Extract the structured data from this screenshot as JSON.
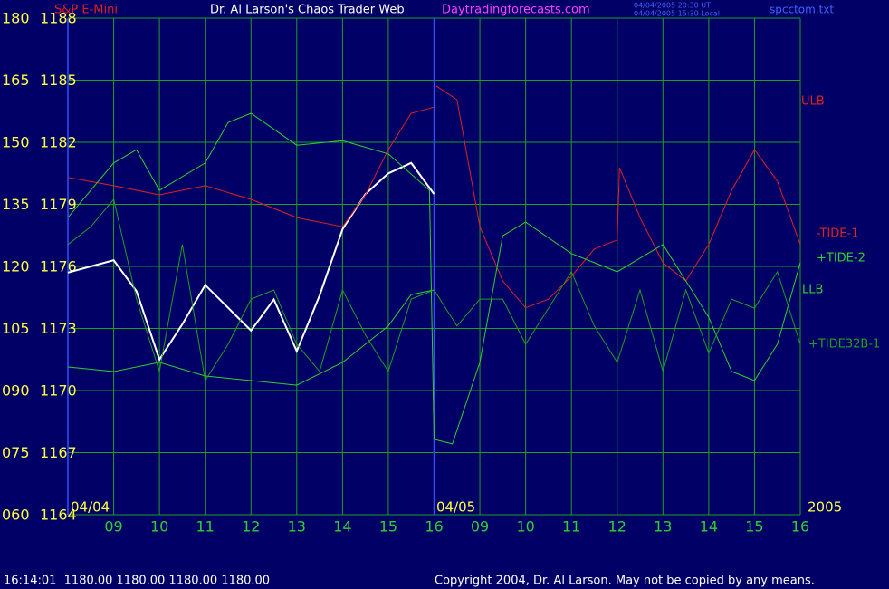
{
  "chart_data": {
    "type": "line",
    "title": "Dr. Al Larson's Chaos Trader Web",
    "instrument": "S&P E-Mini",
    "website": "Daytradingforecasts.com",
    "timestamp_ut": "04/04/2005 20:30 UT",
    "timestamp_local": "04/04/2005 15:30 Local",
    "file": "spcctom.txt",
    "date_labels": [
      "04/04",
      "04/05",
      "2005"
    ],
    "status": "16:14:01  1180.00 1180.00 1180.00 1180.00",
    "copyright": "Copyright 2004, Dr. Al Larson. May not be copied by any means.",
    "background": "#000066",
    "grid": true,
    "xlim": [
      0,
      16
    ],
    "xticks": [
      {
        "value": 1,
        "label": "09"
      },
      {
        "value": 2,
        "label": "10"
      },
      {
        "value": 3,
        "label": "11"
      },
      {
        "value": 4,
        "label": "12"
      },
      {
        "value": 5,
        "label": "13"
      },
      {
        "value": 6,
        "label": "14"
      },
      {
        "value": 7,
        "label": "15"
      },
      {
        "value": 8,
        "label": "16"
      },
      {
        "value": 9,
        "label": "09"
      },
      {
        "value": 10,
        "label": "10"
      },
      {
        "value": 11,
        "label": "11"
      },
      {
        "value": 12,
        "label": "12"
      },
      {
        "value": 13,
        "label": "13"
      },
      {
        "value": 14,
        "label": "14"
      },
      {
        "value": 15,
        "label": "15"
      },
      {
        "value": 16,
        "label": "16"
      }
    ],
    "ylim": [
      1164,
      1188
    ],
    "yticks": [
      1188,
      1185,
      1182,
      1179,
      1176,
      1173,
      1170,
      1167,
      1164
    ],
    "y2lim": [
      60,
      180
    ],
    "y2ticks": [
      180,
      165,
      150,
      135,
      120,
      105,
      {
        "value": 90,
        "label": "090"
      },
      {
        "value": 75,
        "label": "075"
      },
      {
        "value": 60,
        "label": "060"
      }
    ],
    "series": [
      {
        "color": "#ffffff",
        "x": [
          0,
          0.5,
          1,
          1.5,
          2,
          2.5,
          3,
          3.5,
          4,
          4.5,
          5,
          5.5,
          6,
          6.5,
          7,
          7.5,
          8
        ],
        "values": [
          1175.7,
          1176.0,
          1176.3,
          1174.8,
          1171.5,
          1173.2,
          1175.1,
          1174.0,
          1172.9,
          1174.4,
          1171.9,
          1174.6,
          1177.8,
          1179.5,
          1180.5,
          1181.0,
          1179.5
        ]
      },
      {
        "name": "ULB",
        "color": "#e02020",
        "axis": "y2",
        "x": [
          0,
          1,
          2,
          3,
          4,
          5,
          6,
          6.5,
          7,
          7.5,
          8
        ],
        "values": [
          141.5,
          139.5,
          137.3,
          139.5,
          136.2,
          131.8,
          129.6,
          137.3,
          148.2,
          157.0,
          158.5
        ]
      },
      {
        "name": "-TIDE-1",
        "color": "#e02020",
        "axis": "y2",
        "x": [
          8.05,
          8.5,
          9,
          9.5,
          10,
          10.5,
          11,
          11.5,
          12,
          12.05,
          12.5,
          13,
          13.5,
          14,
          14.5,
          15,
          15.5,
          16
        ],
        "values": [
          163.6,
          160.3,
          129.6,
          116.5,
          110.0,
          112.1,
          117.6,
          124.2,
          126.4,
          143.9,
          131.8,
          120.9,
          116.5,
          125.3,
          138.4,
          148.2,
          140.6,
          125.3
        ]
      },
      {
        "name": "+TIDE-2",
        "color": "#30d030",
        "axis": "y2",
        "x": [
          0,
          1,
          1.5,
          2,
          3,
          3.5,
          4,
          5,
          6,
          7,
          7.9,
          8,
          8.4,
          9,
          9.5,
          10,
          11,
          12,
          13,
          14,
          14.5,
          15,
          15.5,
          16
        ],
        "values": [
          131.8,
          145.0,
          148.2,
          138.4,
          145.0,
          154.8,
          157.0,
          149.3,
          150.4,
          147.2,
          138.4,
          78.2,
          77.1,
          96.8,
          127.4,
          130.7,
          123.1,
          118.7,
          125.3,
          107.7,
          94.6,
          92.4,
          101.2,
          120.9
        ]
      },
      {
        "name": "LLB",
        "color": "#30d030",
        "axis": "y2",
        "x": [
          0,
          1,
          2,
          3,
          4,
          5,
          6,
          7,
          7.5,
          8
        ],
        "values": [
          95.7,
          94.6,
          96.8,
          93.5,
          92.4,
          91.3,
          96.8,
          105.6,
          113.2,
          114.3
        ]
      },
      {
        "name": "+TIDE32B-1",
        "color": "#20a020",
        "axis": "y2",
        "x": [
          0,
          0.5,
          1,
          1.5,
          2,
          2.5,
          3,
          3.5,
          4,
          4.5,
          5,
          5.5,
          6,
          6.5,
          7,
          7.5,
          8,
          8.5,
          9,
          9.5,
          10,
          10.5,
          11,
          11.5,
          12,
          12.5,
          13,
          13.5,
          14,
          14.5,
          15,
          15.5,
          16
        ],
        "values": [
          125.3,
          129.6,
          136.2,
          112.1,
          94.6,
          125.3,
          92.4,
          101.2,
          112.1,
          114.3,
          101.2,
          94.6,
          114.3,
          103.4,
          94.6,
          112.1,
          114.3,
          105.6,
          112.1,
          112.1,
          101.2,
          109.9,
          118.7,
          105.6,
          96.8,
          114.3,
          94.6,
          114.3,
          99.0,
          112.1,
          109.9,
          118.7,
          101.2
        ]
      }
    ]
  }
}
